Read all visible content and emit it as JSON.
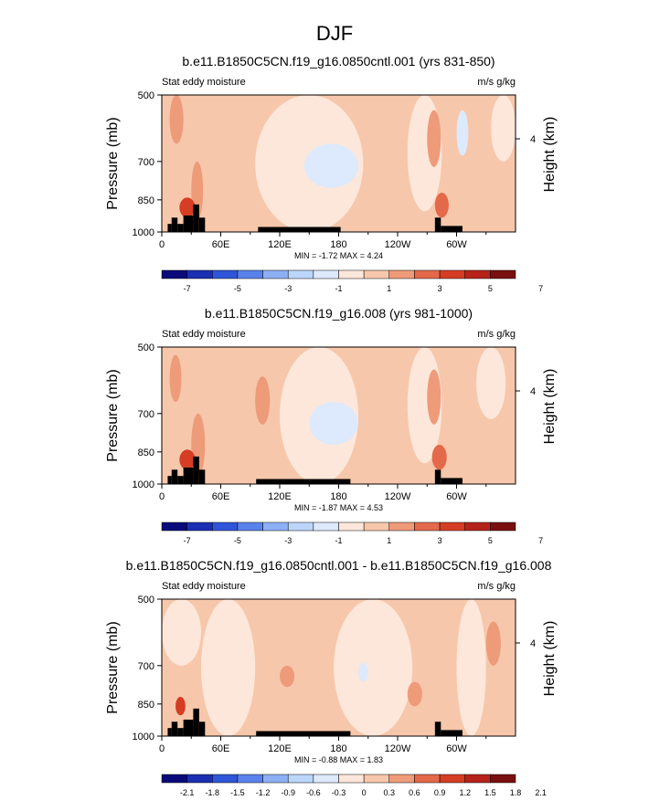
{
  "figure_title": "DJF",
  "palette_colors": [
    "#0a0a7a",
    "#1a2fb3",
    "#2f56d9",
    "#5a82ec",
    "#8daff4",
    "#bcd6fb",
    "#dde9fc",
    "#fde7da",
    "#f7c7ab",
    "#ee9b7a",
    "#e4684a",
    "#d53d24",
    "#b5231a",
    "#7a0f0f"
  ],
  "chart_data": [
    {
      "type": "heatmap",
      "title": "b.e11.B1850C5CN.f19_g16.0850cntl.001 (yrs 831-850)",
      "left_label": "Stat eddy moisture",
      "right_label": "m/s g/kg",
      "ylabel": "Pressure (mb)",
      "y2label": "Height (km)",
      "y_ticks": [
        "500",
        "700",
        "850",
        "1000"
      ],
      "y2_ticks": [
        "4"
      ],
      "x_ticks": [
        "0",
        "60E",
        "120E",
        "180",
        "120W",
        "60W"
      ],
      "stats": "MIN = -1.72  MAX = 4.24",
      "colorbar_labels": [
        "-7",
        "-5",
        "-3",
        "-1",
        "1",
        "3",
        "5",
        "7"
      ],
      "colorbar_levels": [
        -7,
        -6,
        -5,
        -4,
        -3,
        -2,
        -1,
        0,
        1,
        2,
        3,
        4,
        5,
        6,
        7
      ],
      "ylim": [
        1000,
        500
      ],
      "xlim": [
        0,
        360
      ],
      "background_value": 0.3,
      "regions": [
        {
          "x": [
            95,
            205
          ],
          "p": [
            500,
            1000
          ],
          "value": -0.5
        },
        {
          "x": [
            250,
            285
          ],
          "p": [
            500,
            900
          ],
          "value": -0.4
        },
        {
          "x": [
            335,
            360
          ],
          "p": [
            500,
            700
          ],
          "value": -0.5
        },
        {
          "x": [
            145,
            200
          ],
          "p": [
            640,
            800
          ],
          "value": -1.4
        },
        {
          "x": [
            8,
            22
          ],
          "p": [
            500,
            640
          ],
          "value": 1.3
        },
        {
          "x": [
            30,
            42
          ],
          "p": [
            700,
            940
          ],
          "value": 1.6
        },
        {
          "x": [
            270,
            284
          ],
          "p": [
            540,
            720
          ],
          "value": 1.4
        },
        {
          "x": [
            278,
            292
          ],
          "p": [
            820,
            930
          ],
          "value": 2.4
        },
        {
          "x": [
            300,
            312
          ],
          "p": [
            540,
            680
          ],
          "value": -1.1
        },
        {
          "x": [
            18,
            34
          ],
          "p": [
            840,
            930
          ],
          "value": 3.4
        }
      ],
      "topography": [
        {
          "x": [
            6,
            10
          ],
          "p": [
            960,
            1000
          ]
        },
        {
          "x": [
            10,
            16
          ],
          "p": [
            930,
            1000
          ]
        },
        {
          "x": [
            16,
            22
          ],
          "p": [
            960,
            1000
          ]
        },
        {
          "x": [
            22,
            32
          ],
          "p": [
            920,
            1000
          ]
        },
        {
          "x": [
            32,
            38
          ],
          "p": [
            870,
            1000
          ]
        },
        {
          "x": [
            38,
            44
          ],
          "p": [
            930,
            1000
          ]
        },
        {
          "x": [
            98,
            182
          ],
          "p": [
            975,
            1000
          ]
        },
        {
          "x": [
            278,
            284
          ],
          "p": [
            930,
            1000
          ]
        },
        {
          "x": [
            284,
            306
          ],
          "p": [
            970,
            1000
          ]
        }
      ]
    },
    {
      "type": "heatmap",
      "title": "b.e11.B1850C5CN.f19_g16.008 (yrs 981-1000)",
      "left_label": "Stat eddy moisture",
      "right_label": "m/s g/kg",
      "ylabel": "Pressure (mb)",
      "y2label": "Height (km)",
      "y_ticks": [
        "500",
        "700",
        "850",
        "1000"
      ],
      "y2_ticks": [
        "4"
      ],
      "x_ticks": [
        "0",
        "60E",
        "120E",
        "180",
        "120W",
        "60W"
      ],
      "stats": "MIN = -1.87  MAX = 4.53",
      "colorbar_labels": [
        "-7",
        "-5",
        "-3",
        "-1",
        "1",
        "3",
        "5",
        "7"
      ],
      "colorbar_levels": [
        -7,
        -6,
        -5,
        -4,
        -3,
        -2,
        -1,
        0,
        1,
        2,
        3,
        4,
        5,
        6,
        7
      ],
      "ylim": [
        1000,
        500
      ],
      "xlim": [
        0,
        360
      ],
      "background_value": 0.3,
      "regions": [
        {
          "x": [
            120,
            200
          ],
          "p": [
            500,
            1000
          ],
          "value": -0.5
        },
        {
          "x": [
            250,
            285
          ],
          "p": [
            500,
            900
          ],
          "value": -0.4
        },
        {
          "x": [
            320,
            350
          ],
          "p": [
            500,
            720
          ],
          "value": -0.5
        },
        {
          "x": [
            150,
            200
          ],
          "p": [
            660,
            820
          ],
          "value": -1.4
        },
        {
          "x": [
            8,
            20
          ],
          "p": [
            520,
            660
          ],
          "value": 1.2
        },
        {
          "x": [
            30,
            44
          ],
          "p": [
            700,
            960
          ],
          "value": 1.5
        },
        {
          "x": [
            95,
            110
          ],
          "p": [
            580,
            740
          ],
          "value": 1.1
        },
        {
          "x": [
            270,
            284
          ],
          "p": [
            560,
            740
          ],
          "value": 1.3
        },
        {
          "x": [
            275,
            290
          ],
          "p": [
            820,
            930
          ],
          "value": 2.5
        },
        {
          "x": [
            18,
            34
          ],
          "p": [
            840,
            930
          ],
          "value": 3.2
        }
      ],
      "topography": [
        {
          "x": [
            6,
            10
          ],
          "p": [
            960,
            1000
          ]
        },
        {
          "x": [
            10,
            16
          ],
          "p": [
            930,
            1000
          ]
        },
        {
          "x": [
            16,
            22
          ],
          "p": [
            960,
            1000
          ]
        },
        {
          "x": [
            22,
            32
          ],
          "p": [
            920,
            1000
          ]
        },
        {
          "x": [
            32,
            38
          ],
          "p": [
            870,
            1000
          ]
        },
        {
          "x": [
            38,
            44
          ],
          "p": [
            930,
            1000
          ]
        },
        {
          "x": [
            96,
            192
          ],
          "p": [
            975,
            1000
          ]
        },
        {
          "x": [
            278,
            284
          ],
          "p": [
            930,
            1000
          ]
        },
        {
          "x": [
            284,
            306
          ],
          "p": [
            970,
            1000
          ]
        }
      ]
    },
    {
      "type": "heatmap",
      "title": "b.e11.B1850C5CN.f19_g16.0850cntl.001 - b.e11.B1850C5CN.f19_g16.008",
      "left_label": "Stat eddy moisture",
      "right_label": "m/s g/kg",
      "ylabel": "Pressure (mb)",
      "y2label": "Height (km)",
      "y_ticks": [
        "500",
        "700",
        "850",
        "1000"
      ],
      "y2_ticks": [
        "4"
      ],
      "x_ticks": [
        "0",
        "60E",
        "120E",
        "180",
        "120W",
        "60W"
      ],
      "stats": "MIN = -0.88  MAX = 1.83",
      "colorbar_labels": [
        "-2.1",
        "-1.8",
        "-1.5",
        "-1.2",
        "-0.9",
        "-0.6",
        "-0.3",
        "0",
        "0.3",
        "0.6",
        "0.9",
        "1.2",
        "1.5",
        "1.8",
        "2.1"
      ],
      "colorbar_levels": [
        -2.1,
        -1.8,
        -1.5,
        -1.2,
        -0.9,
        -0.6,
        -0.3,
        0,
        0.3,
        0.6,
        0.9,
        1.2,
        1.5,
        1.8,
        2.1
      ],
      "ylim": [
        1000,
        500
      ],
      "xlim": [
        0,
        360
      ],
      "background_value": 0.15,
      "regions": [
        {
          "x": [
            0,
            40
          ],
          "p": [
            500,
            700
          ],
          "value": -0.15
        },
        {
          "x": [
            40,
            95
          ],
          "p": [
            500,
            1000
          ],
          "value": -0.15
        },
        {
          "x": [
            175,
            255
          ],
          "p": [
            500,
            1000
          ],
          "value": -0.15
        },
        {
          "x": [
            300,
            330
          ],
          "p": [
            500,
            1000
          ],
          "value": -0.15
        },
        {
          "x": [
            200,
            210
          ],
          "p": [
            690,
            760
          ],
          "value": -0.4
        },
        {
          "x": [
            120,
            135
          ],
          "p": [
            700,
            780
          ],
          "value": 0.45
        },
        {
          "x": [
            330,
            345
          ],
          "p": [
            560,
            700
          ],
          "value": 0.35
        },
        {
          "x": [
            14,
            24
          ],
          "p": [
            820,
            900
          ],
          "value": 0.9
        },
        {
          "x": [
            250,
            265
          ],
          "p": [
            760,
            860
          ],
          "value": 0.4
        }
      ],
      "topography": [
        {
          "x": [
            6,
            10
          ],
          "p": [
            960,
            1000
          ]
        },
        {
          "x": [
            10,
            16
          ],
          "p": [
            930,
            1000
          ]
        },
        {
          "x": [
            16,
            22
          ],
          "p": [
            960,
            1000
          ]
        },
        {
          "x": [
            22,
            32
          ],
          "p": [
            920,
            1000
          ]
        },
        {
          "x": [
            32,
            38
          ],
          "p": [
            870,
            1000
          ]
        },
        {
          "x": [
            38,
            44
          ],
          "p": [
            930,
            1000
          ]
        },
        {
          "x": [
            96,
            192
          ],
          "p": [
            975,
            1000
          ]
        },
        {
          "x": [
            278,
            284
          ],
          "p": [
            930,
            1000
          ]
        },
        {
          "x": [
            284,
            306
          ],
          "p": [
            970,
            1000
          ]
        }
      ]
    }
  ]
}
